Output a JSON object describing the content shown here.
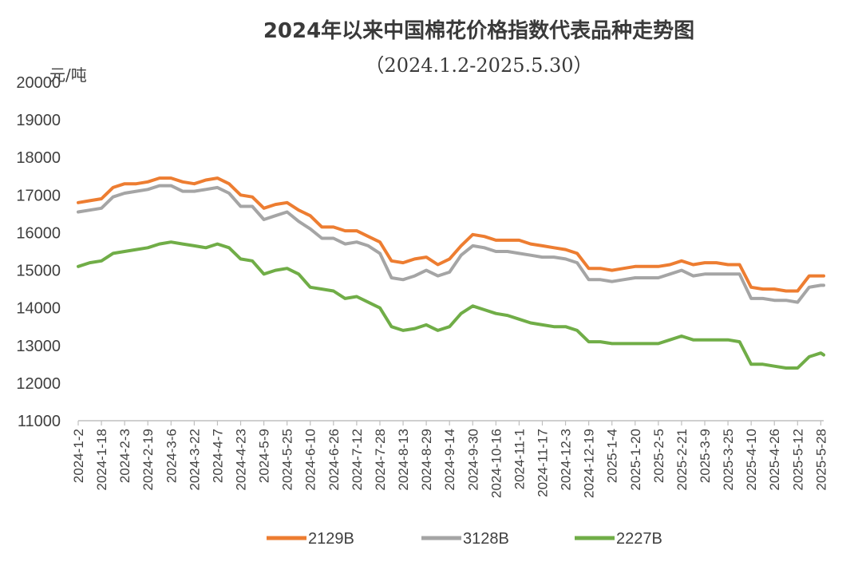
{
  "chart_data": {
    "type": "line",
    "title": "2024年以来中国棉花价格指数代表品种走势图",
    "subtitle": "（2024.1.2-2025.5.30）",
    "ylabel": "元/吨",
    "ylim": [
      11000,
      20000
    ],
    "yticks": [
      "11000",
      "12000",
      "13000",
      "14000",
      "15000",
      "16000",
      "17000",
      "18000",
      "19000",
      "20000"
    ],
    "grid": false,
    "legend_position": "bottom",
    "x_tick_labels": [
      "2024-1-2",
      "2024-1-18",
      "2024-2-3",
      "2024-2-19",
      "2024-3-6",
      "2024-3-22",
      "2024-4-7",
      "2024-4-23",
      "2024-5-9",
      "2024-5-25",
      "2024-6-10",
      "2024-6-26",
      "2024-7-12",
      "2024-7-28",
      "2024-8-13",
      "2024-8-29",
      "2024-9-14",
      "2024-9-30",
      "2024-10-16",
      "2024-11-1",
      "2024-11-17",
      "2024-12-3",
      "2024-12-19",
      "2025-1-4",
      "2025-1-20",
      "2025-2-5",
      "2025-2-21",
      "2025-3-9",
      "2025-3-25",
      "2025-4-10",
      "2025-4-26",
      "2025-5-12",
      "2025-5-28"
    ],
    "x": [
      "2024-1-2",
      "2024-1-10",
      "2024-1-18",
      "2024-1-26",
      "2024-2-3",
      "2024-2-11",
      "2024-2-19",
      "2024-2-27",
      "2024-3-6",
      "2024-3-14",
      "2024-3-22",
      "2024-3-30",
      "2024-4-7",
      "2024-4-15",
      "2024-4-23",
      "2024-5-1",
      "2024-5-9",
      "2024-5-17",
      "2024-5-25",
      "2024-6-2",
      "2024-6-10",
      "2024-6-18",
      "2024-6-26",
      "2024-7-4",
      "2024-7-12",
      "2024-7-20",
      "2024-7-28",
      "2024-8-5",
      "2024-8-13",
      "2024-8-21",
      "2024-8-29",
      "2024-9-6",
      "2024-9-14",
      "2024-9-22",
      "2024-9-30",
      "2024-10-8",
      "2024-10-16",
      "2024-10-24",
      "2024-11-1",
      "2024-11-9",
      "2024-11-17",
      "2024-11-25",
      "2024-12-3",
      "2024-12-11",
      "2024-12-19",
      "2024-12-27",
      "2025-1-4",
      "2025-1-12",
      "2025-1-20",
      "2025-1-28",
      "2025-2-5",
      "2025-2-13",
      "2025-2-21",
      "2025-3-1",
      "2025-3-9",
      "2025-3-17",
      "2025-3-25",
      "2025-4-2",
      "2025-4-10",
      "2025-4-18",
      "2025-4-26",
      "2025-5-4",
      "2025-5-12",
      "2025-5-20",
      "2025-5-28",
      "2025-5-30"
    ],
    "series": [
      {
        "name": "2129B",
        "color": "#ED7D31",
        "values": [
          16800,
          16850,
          16900,
          17200,
          17300,
          17300,
          17350,
          17450,
          17450,
          17350,
          17300,
          17400,
          17450,
          17300,
          17000,
          16950,
          16650,
          16750,
          16800,
          16600,
          16450,
          16150,
          16150,
          16050,
          16050,
          15900,
          15750,
          15250,
          15200,
          15300,
          15350,
          15150,
          15300,
          15650,
          15950,
          15900,
          15800,
          15800,
          15800,
          15700,
          15650,
          15600,
          15550,
          15450,
          15050,
          15050,
          15000,
          15050,
          15100,
          15100,
          15100,
          15150,
          15250,
          15150,
          15200,
          15200,
          15150,
          15150,
          14550,
          14500,
          14500,
          14450,
          14450,
          14850,
          14850,
          14850
        ]
      },
      {
        "name": "3128B",
        "color": "#A5A5A5",
        "values": [
          16550,
          16600,
          16650,
          16950,
          17050,
          17100,
          17150,
          17250,
          17250,
          17100,
          17100,
          17150,
          17200,
          17050,
          16700,
          16700,
          16350,
          16450,
          16550,
          16300,
          16100,
          15850,
          15850,
          15700,
          15750,
          15650,
          15450,
          14800,
          14750,
          14850,
          15000,
          14850,
          14950,
          15400,
          15650,
          15600,
          15500,
          15500,
          15450,
          15400,
          15350,
          15350,
          15300,
          15200,
          14750,
          14750,
          14700,
          14750,
          14800,
          14800,
          14800,
          14900,
          15000,
          14850,
          14900,
          14900,
          14900,
          14900,
          14250,
          14250,
          14200,
          14200,
          14150,
          14550,
          14600,
          14600
        ]
      },
      {
        "name": "2227B",
        "color": "#70AD47",
        "values": [
          15100,
          15200,
          15250,
          15450,
          15500,
          15550,
          15600,
          15700,
          15750,
          15700,
          15650,
          15600,
          15700,
          15600,
          15300,
          15250,
          14900,
          15000,
          15050,
          14900,
          14550,
          14500,
          14450,
          14250,
          14300,
          14150,
          14000,
          13500,
          13400,
          13450,
          13550,
          13400,
          13500,
          13850,
          14050,
          13950,
          13850,
          13800,
          13700,
          13600,
          13550,
          13500,
          13500,
          13400,
          13100,
          13100,
          13050,
          13050,
          13050,
          13050,
          13050,
          13150,
          13250,
          13150,
          13150,
          13150,
          13150,
          13100,
          12500,
          12500,
          12450,
          12400,
          12400,
          12700,
          12800,
          12750
        ]
      }
    ]
  }
}
